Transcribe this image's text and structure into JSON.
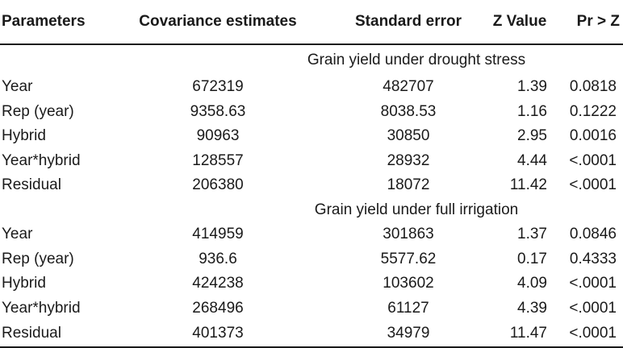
{
  "table": {
    "headers": [
      "Parameters",
      "Covariance estimates",
      "Standard error",
      "Z Value",
      "Pr > Z"
    ],
    "sections": [
      {
        "title": "Grain yield under drought stress",
        "rows": [
          [
            "Year",
            "672319",
            "482707",
            "1.39",
            "0.0818"
          ],
          [
            "Rep (year)",
            "9358.63",
            "8038.53",
            "1.16",
            "0.1222"
          ],
          [
            "Hybrid",
            "90963",
            "30850",
            "2.95",
            "0.0016"
          ],
          [
            "Year*hybrid",
            "128557",
            "28932",
            "4.44",
            "<.0001"
          ],
          [
            "Residual",
            "206380",
            "18072",
            "11.42",
            "<.0001"
          ]
        ]
      },
      {
        "title": "Grain yield under full irrigation",
        "rows": [
          [
            "Year",
            "414959",
            "301863",
            "1.37",
            "0.0846"
          ],
          [
            "Rep (year)",
            "936.6",
            "5577.62",
            "0.17",
            "0.4333"
          ],
          [
            "Hybrid",
            "424238",
            "103602",
            "4.09",
            "<.0001"
          ],
          [
            "Year*hybrid",
            "268496",
            "61127",
            "4.39",
            "<.0001"
          ],
          [
            "Residual",
            "401373",
            "34979",
            "11.47",
            "<.0001"
          ]
        ]
      }
    ]
  }
}
